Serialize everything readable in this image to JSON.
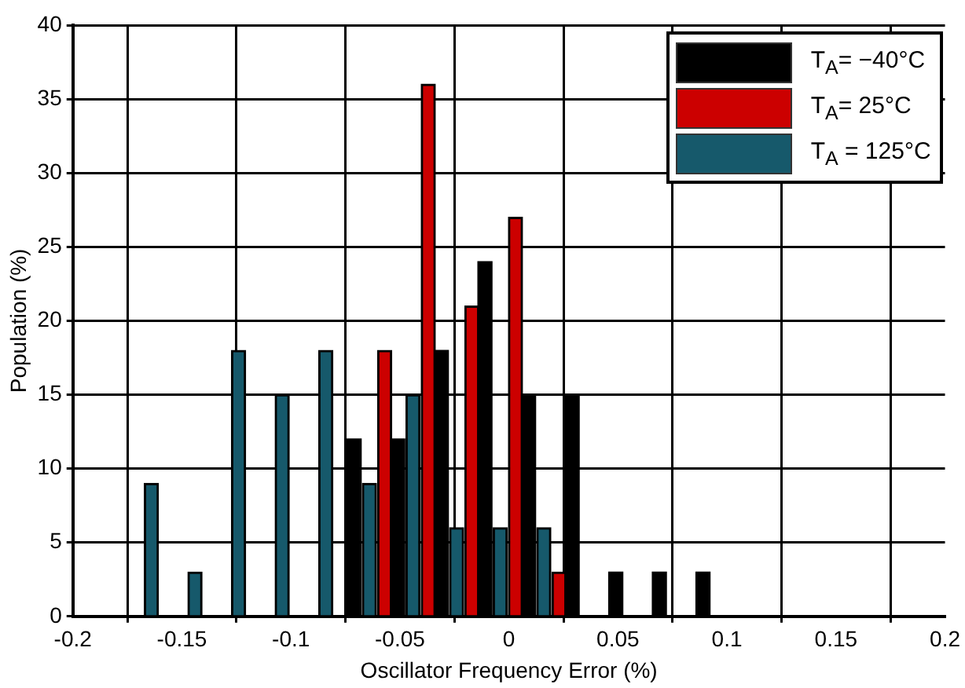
{
  "chart_data": {
    "type": "bar",
    "xlabel": "Oscillator Frequency Error (%)",
    "ylabel": "Population (%)",
    "xlim": [
      -0.2,
      0.2
    ],
    "xticks": [
      -0.2,
      -0.15,
      -0.1,
      -0.05,
      0,
      0.05,
      0.1,
      0.15,
      0.2
    ],
    "ylim": [
      0,
      40
    ],
    "yticks": [
      0,
      5,
      10,
      15,
      20,
      25,
      30,
      35,
      40
    ],
    "grid": true,
    "legend": "top right",
    "series": [
      {
        "name": "T$_{A}$= −40°C",
        "color": "#000000",
        "x": [
          -0.071,
          -0.051,
          -0.031,
          -0.011,
          0.009,
          0.029,
          0.049,
          0.069,
          0.089
        ],
        "values": [
          12,
          12,
          18,
          24,
          15,
          15,
          3,
          3,
          3
        ]
      },
      {
        "name": "T$_{A}$=  25°C",
        "color": "#cc0000",
        "x": [
          -0.057,
          -0.037,
          -0.017,
          0.003,
          0.023
        ],
        "values": [
          18,
          36,
          21,
          27,
          3
        ]
      },
      {
        "name": "T$_{A}$ = 125°C",
        "color": "#16596b",
        "x": [
          -0.164,
          -0.144,
          -0.124,
          -0.104,
          -0.084,
          -0.064,
          -0.044,
          -0.024,
          -0.004,
          0.016
        ],
        "values": [
          9,
          3,
          18,
          15,
          18,
          9,
          15,
          6,
          6,
          6
        ]
      }
    ]
  }
}
